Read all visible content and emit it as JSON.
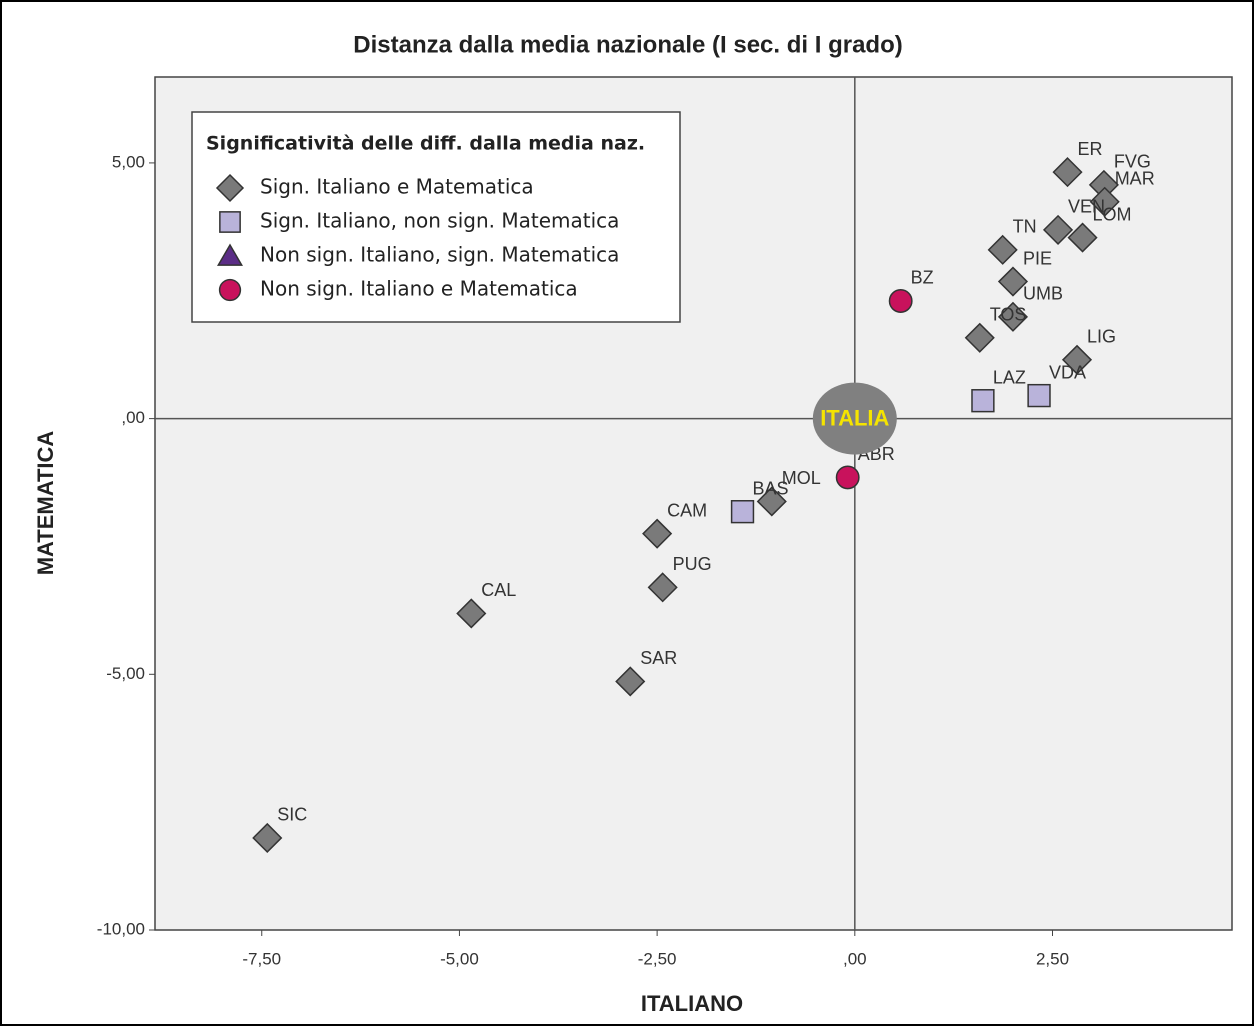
{
  "chart_data": {
    "type": "scatter",
    "title": "Distanza dalla media nazionale (I sec. di I grado)",
    "xlabel": "ITALIANO",
    "ylabel": "MATEMATICA",
    "xlim": [
      -8.85,
      4.77
    ],
    "ylim": [
      -10,
      6.68
    ],
    "xticks": [
      {
        "value": -7.5,
        "label": "-7,50"
      },
      {
        "value": -5,
        "label": "-5,00"
      },
      {
        "value": -2.5,
        "label": "-2,50"
      },
      {
        "value": 0,
        "label": ",00"
      },
      {
        "value": 2.5,
        "label": "2,50"
      }
    ],
    "yticks": [
      {
        "value": -10,
        "label": "-10,00"
      },
      {
        "value": -5,
        "label": "-5,00"
      },
      {
        "value": 0,
        "label": ",00"
      },
      {
        "value": 5,
        "label": "5,00"
      }
    ],
    "legend_title": "Significatività delle diff. dalla media naz.",
    "legend": "upper left",
    "series": [
      {
        "name": "Sign. Italiano e Matematica",
        "color": "#7a7a7a",
        "marker": "diamond",
        "labels": [
          "ER",
          "FVG",
          "MAR",
          "VEN",
          "LOM",
          "TN",
          "PIE",
          "UMB",
          "TOS",
          "LIG",
          "MOL",
          "CAM",
          "PUG",
          "CAL",
          "SAR",
          "SIC"
        ],
        "x": [
          2.69,
          3.15,
          3.16,
          2.57,
          2.88,
          1.87,
          2.0,
          2.0,
          1.58,
          2.81,
          -1.05,
          -2.5,
          -2.43,
          -4.85,
          -2.84,
          -7.43
        ],
        "y": [
          4.82,
          4.57,
          4.24,
          3.69,
          3.54,
          3.3,
          2.68,
          1.99,
          1.58,
          1.15,
          -1.62,
          -2.25,
          -3.3,
          -3.81,
          -5.14,
          -8.2
        ]
      },
      {
        "name": "Sign. Italiano, non sign. Matematica",
        "color": "#b9b3da",
        "marker": "square",
        "labels": [
          "LAZ",
          "VDA",
          "BAS"
        ],
        "x": [
          1.62,
          2.33,
          -1.42
        ],
        "y": [
          0.35,
          0.45,
          -1.82
        ]
      },
      {
        "name": "Non sign. Italiano, sign. Matematica",
        "color": "#5b2d86",
        "marker": "triangle",
        "labels": [],
        "x": [],
        "y": []
      },
      {
        "name": "Non sign. Italiano e Matematica",
        "color": "#c8125c",
        "marker": "circle",
        "labels": [
          "BZ",
          "ABR"
        ],
        "x": [
          0.58,
          -0.09
        ],
        "y": [
          2.3,
          -1.15
        ]
      }
    ],
    "reference": {
      "label": "ITALIA",
      "x": 0,
      "y": 0,
      "color": "#808080",
      "label_color": "#f5e400"
    }
  }
}
